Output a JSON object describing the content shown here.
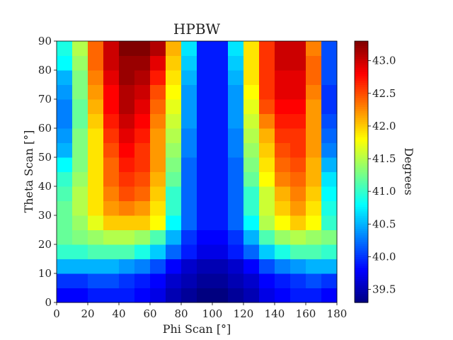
{
  "chart_data": {
    "type": "heatmap",
    "title": "HPBW",
    "xlabel": "Phi Scan [°]",
    "ylabel": "Theta Scan [°]",
    "colorbar_label": "Degrees",
    "colormap": "jet",
    "x_edges": [
      0,
      10,
      20,
      30,
      40,
      50,
      60,
      70,
      80,
      90,
      100,
      110,
      120,
      130,
      140,
      150,
      160,
      170,
      180
    ],
    "y_edges": [
      0,
      5,
      10,
      15,
      20,
      25,
      30,
      35,
      40,
      45,
      50,
      55,
      60,
      65,
      70,
      75,
      80,
      85,
      90
    ],
    "xlim": [
      0,
      180
    ],
    "ylim": [
      0,
      90
    ],
    "xticks": [
      0,
      20,
      40,
      60,
      80,
      100,
      120,
      140,
      160,
      180
    ],
    "yticks": [
      0,
      10,
      20,
      30,
      40,
      50,
      60,
      70,
      80,
      90
    ],
    "clim": [
      39.3,
      43.3
    ],
    "colorbar_ticks": [
      "39.5",
      "40.0",
      "40.5",
      "41.0",
      "41.5",
      "42.0",
      "42.5",
      "43.0"
    ],
    "grid": false,
    "values": [
      [
        39.8,
        39.8,
        39.9,
        39.9,
        39.9,
        39.8,
        39.7,
        39.5,
        39.4,
        39.3,
        39.3,
        39.4,
        39.5,
        39.7,
        39.8,
        39.9,
        39.9,
        39.8
      ],
      [
        40.0,
        40.0,
        40.1,
        40.1,
        40.0,
        39.9,
        39.8,
        39.6,
        39.5,
        39.4,
        39.4,
        39.5,
        39.6,
        39.8,
        39.9,
        40.0,
        40.1,
        40.0
      ],
      [
        40.5,
        40.5,
        40.5,
        40.5,
        40.4,
        40.3,
        40.1,
        39.8,
        39.6,
        39.5,
        39.5,
        39.6,
        39.8,
        40.1,
        40.3,
        40.4,
        40.5,
        40.5
      ],
      [
        41.0,
        41.0,
        41.1,
        41.1,
        41.1,
        40.9,
        40.6,
        40.2,
        39.9,
        39.7,
        39.7,
        39.9,
        40.2,
        40.6,
        40.9,
        41.1,
        41.1,
        41.0
      ],
      [
        41.2,
        41.3,
        41.4,
        41.5,
        41.5,
        41.4,
        41.1,
        40.5,
        40.0,
        39.8,
        39.8,
        40.0,
        40.5,
        41.1,
        41.4,
        41.5,
        41.4,
        41.3
      ],
      [
        41.2,
        41.4,
        41.7,
        42.0,
        42.0,
        42.0,
        41.8,
        40.8,
        40.2,
        39.9,
        39.9,
        40.2,
        40.8,
        41.5,
        41.8,
        42.0,
        41.8,
        41.0
      ],
      [
        41.2,
        41.5,
        41.9,
        42.2,
        42.3,
        42.2,
        41.9,
        41.0,
        40.2,
        39.9,
        39.9,
        40.2,
        41.0,
        41.6,
        42.0,
        42.2,
        41.9,
        40.9
      ],
      [
        41.1,
        41.5,
        41.9,
        42.3,
        42.5,
        42.4,
        42.0,
        41.0,
        40.2,
        39.9,
        39.9,
        40.2,
        41.0,
        41.6,
        42.1,
        42.3,
        42.0,
        40.8
      ],
      [
        41.0,
        41.4,
        41.9,
        42.4,
        42.6,
        42.5,
        42.1,
        41.2,
        40.2,
        39.9,
        39.9,
        40.2,
        41.2,
        41.8,
        42.3,
        42.4,
        42.1,
        40.7
      ],
      [
        40.8,
        41.3,
        41.9,
        42.4,
        42.7,
        42.6,
        42.2,
        41.3,
        40.2,
        39.9,
        39.9,
        40.2,
        41.3,
        41.9,
        42.4,
        42.5,
        42.1,
        40.5
      ],
      [
        40.5,
        41.3,
        41.9,
        42.5,
        42.8,
        42.6,
        42.2,
        41.4,
        40.3,
        39.9,
        39.9,
        40.3,
        41.4,
        42.0,
        42.5,
        42.6,
        42.2,
        40.3
      ],
      [
        40.4,
        41.3,
        41.9,
        42.6,
        42.9,
        42.7,
        42.2,
        41.5,
        40.3,
        39.9,
        39.9,
        40.3,
        41.5,
        42.1,
        42.6,
        42.6,
        42.2,
        40.2
      ],
      [
        40.3,
        41.2,
        42.0,
        42.7,
        43.0,
        42.8,
        42.3,
        41.6,
        40.4,
        39.9,
        39.9,
        40.4,
        41.6,
        42.3,
        42.7,
        42.7,
        42.2,
        40.1
      ],
      [
        40.3,
        41.2,
        42.1,
        42.8,
        43.1,
        42.9,
        42.4,
        41.7,
        40.4,
        39.9,
        39.9,
        40.4,
        41.7,
        42.5,
        42.8,
        42.8,
        42.2,
        40.0
      ],
      [
        40.4,
        41.3,
        42.2,
        42.8,
        43.1,
        43.0,
        42.5,
        41.8,
        40.4,
        39.9,
        39.9,
        40.4,
        41.8,
        42.6,
        42.9,
        42.9,
        42.3,
        40.0
      ],
      [
        40.5,
        41.3,
        42.3,
        42.9,
        43.2,
        43.1,
        42.7,
        41.9,
        40.5,
        39.9,
        39.9,
        40.5,
        41.9,
        42.6,
        42.9,
        42.9,
        42.4,
        40.1
      ],
      [
        40.8,
        41.4,
        42.4,
        43.0,
        43.2,
        43.2,
        42.9,
        42.0,
        40.6,
        39.9,
        39.9,
        40.6,
        41.9,
        42.6,
        43.0,
        43.0,
        42.4,
        40.1
      ],
      [
        40.9,
        41.5,
        42.4,
        43.0,
        43.3,
        43.3,
        43.1,
        42.1,
        40.7,
        39.9,
        39.9,
        40.7,
        41.9,
        42.6,
        43.0,
        43.0,
        42.3,
        40.1
      ]
    ]
  }
}
